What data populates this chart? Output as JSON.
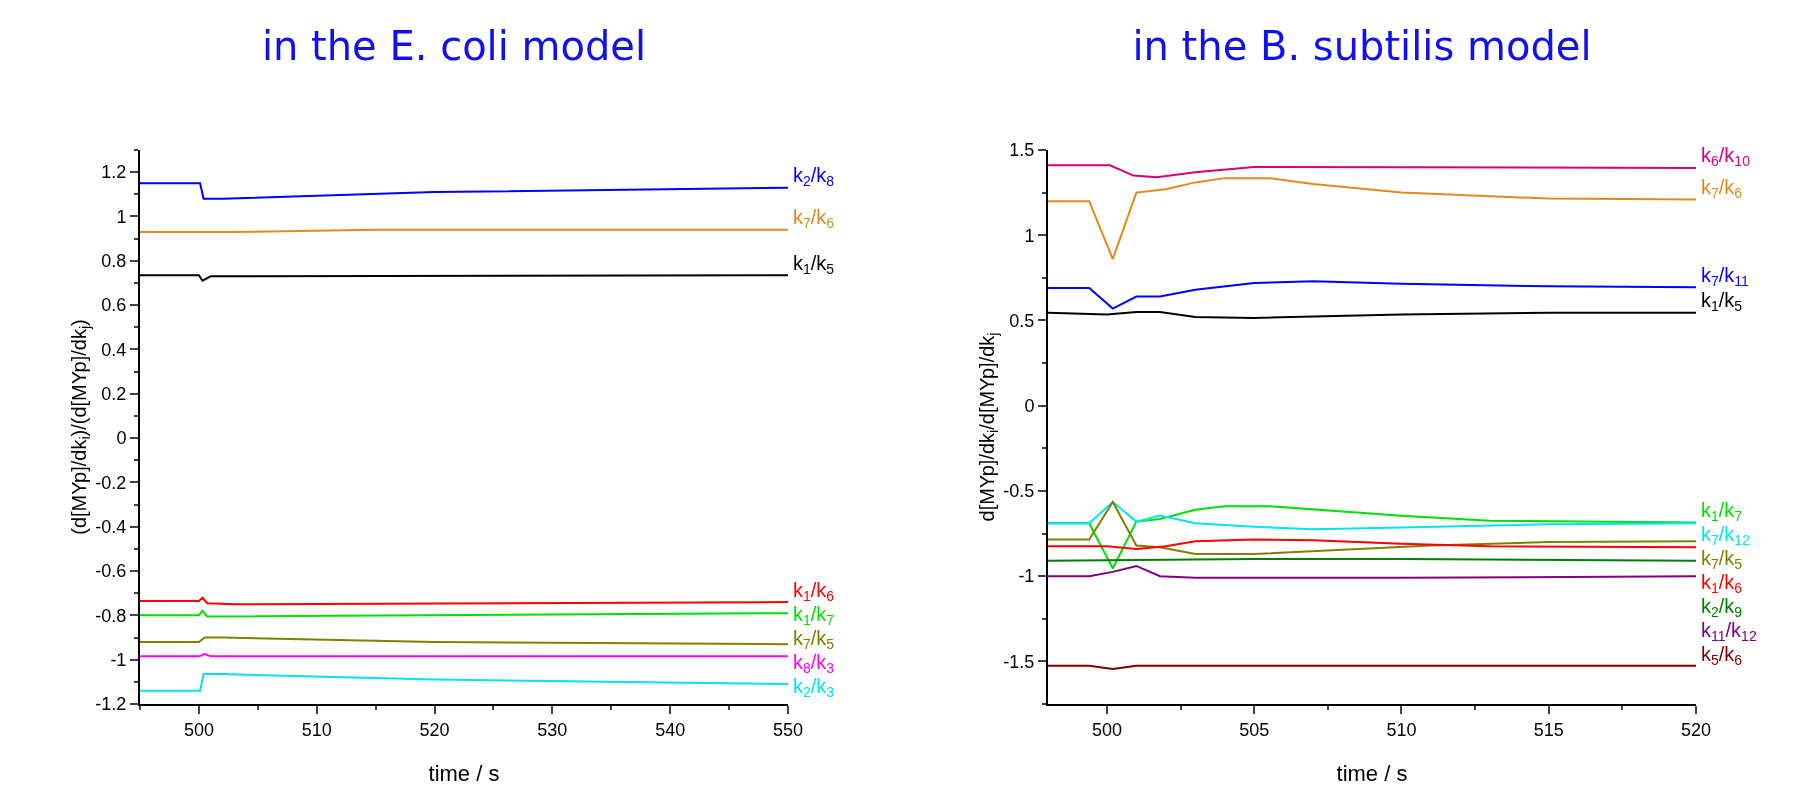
{
  "chart_data": [
    {
      "type": "line",
      "title": "in the E. coli model",
      "xlabel": "time / s",
      "ylabel": "(d[MYp]/dk$_{i}$)/(d[MYp]/dk$_{j}$)",
      "xlim": [
        495,
        550
      ],
      "xticks": [
        500,
        510,
        520,
        530,
        540,
        550
      ],
      "ylim": [
        -1.2,
        1.3
      ],
      "yticks": [
        -1.2,
        -1.0,
        -0.8,
        -0.6,
        -0.4,
        -0.2,
        0.0,
        0.2,
        0.4,
        0.6,
        0.8,
        1.0,
        1.2
      ],
      "grid": false,
      "legend": false,
      "marker": "none",
      "line_style": "solid",
      "series": [
        {
          "name": "k$_{2}$/k$_{8}$",
          "color": "#0000ff",
          "x": [
            495,
            500.1,
            500.4,
            502,
            520,
            550
          ],
          "values": [
            1.15,
            1.15,
            1.08,
            1.08,
            1.11,
            1.13
          ]
        },
        {
          "name": "k$_{7}$/k$_{6}$",
          "color": "#e08a1e",
          "x": [
            495,
            503,
            515,
            550
          ],
          "values": [
            0.93,
            0.93,
            0.94,
            0.94
          ]
        },
        {
          "name": "k$_{1}$/k$_{5}$",
          "color": "#000000",
          "x": [
            495,
            500,
            500.3,
            501,
            550
          ],
          "values": [
            0.735,
            0.735,
            0.71,
            0.73,
            0.735
          ]
        },
        {
          "name": "k$_{1}$/k$_{6}$",
          "color": "#ff0000",
          "x": [
            495,
            500,
            500.3,
            500.7,
            503,
            550
          ],
          "values": [
            -0.735,
            -0.735,
            -0.72,
            -0.745,
            -0.75,
            -0.74
          ]
        },
        {
          "name": "k$_{1}$/k$_{7}$",
          "color": "#00e000",
          "x": [
            495,
            500,
            500.3,
            500.7,
            550
          ],
          "values": [
            -0.8,
            -0.8,
            -0.78,
            -0.805,
            -0.79
          ]
        },
        {
          "name": "k$_{7}$/k$_{5}$",
          "color": "#808000",
          "x": [
            495,
            500,
            500.5,
            502,
            520,
            550
          ],
          "values": [
            -0.92,
            -0.92,
            -0.9,
            -0.9,
            -0.92,
            -0.93
          ]
        },
        {
          "name": "k$_{8}$/k$_{3}$",
          "color": "#ff00ff",
          "x": [
            495,
            500,
            500.5,
            501,
            550
          ],
          "values": [
            -0.985,
            -0.985,
            -0.975,
            -0.985,
            -0.985
          ]
        },
        {
          "name": "k$_{2}$/k$_{3}$",
          "color": "#00e5ee",
          "x": [
            495,
            500.1,
            500.4,
            502,
            520,
            550
          ],
          "values": [
            -1.14,
            -1.14,
            -1.065,
            -1.065,
            -1.09,
            -1.11
          ]
        }
      ]
    },
    {
      "type": "line",
      "title": "in the B. subtilis model",
      "xlabel": "time / s",
      "ylabel": "d[MYp]/dk$_{i}$/d[MYp]/dk$_{j}$",
      "xlim": [
        498,
        520
      ],
      "xticks": [
        500,
        505,
        510,
        515,
        520
      ],
      "ylim": [
        -1.75,
        1.5
      ],
      "yticks": [
        -1.5,
        -1.0,
        -0.5,
        0.0,
        0.5,
        1.0,
        1.5
      ],
      "grid": false,
      "legend": false,
      "marker": "none",
      "line_style": "solid",
      "series": [
        {
          "name": "k$_{6}$/k$_{10}$",
          "color": "#d6007a",
          "x": [
            498,
            500.1,
            500.9,
            501.7,
            503,
            505,
            520
          ],
          "values": [
            1.41,
            1.41,
            1.35,
            1.34,
            1.37,
            1.4,
            1.395
          ]
        },
        {
          "name": "k$_{7}$/k$_{6}$",
          "color": "#e08a1e",
          "x": [
            498,
            499.4,
            500.2,
            501,
            502,
            503,
            504,
            505.5,
            507,
            510,
            515,
            520
          ],
          "values": [
            1.2,
            1.2,
            0.86,
            1.25,
            1.27,
            1.31,
            1.335,
            1.335,
            1.3,
            1.25,
            1.215,
            1.21
          ]
        },
        {
          "name": "k$_{7}$/k$_{11}$",
          "color": "#0000ff",
          "x": [
            498,
            499.4,
            500.2,
            501,
            501.8,
            503,
            505,
            507,
            510,
            515,
            520
          ],
          "values": [
            0.69,
            0.69,
            0.57,
            0.64,
            0.64,
            0.68,
            0.72,
            0.73,
            0.715,
            0.7,
            0.695
          ]
        },
        {
          "name": "k$_{1}$/k$_{5}$",
          "color": "#000000",
          "x": [
            498,
            500,
            501,
            501.8,
            503,
            505,
            510,
            515,
            520
          ],
          "values": [
            0.545,
            0.535,
            0.55,
            0.55,
            0.52,
            0.515,
            0.535,
            0.545,
            0.545
          ]
        },
        {
          "name": "k$_{1}$/k$_{7}$",
          "color": "#00e000",
          "x": [
            498,
            499.4,
            500.2,
            501,
            501.8,
            503,
            504,
            505.5,
            508,
            510,
            513,
            520
          ],
          "values": [
            -0.69,
            -0.69,
            -0.955,
            -0.68,
            -0.665,
            -0.61,
            -0.59,
            -0.59,
            -0.62,
            -0.645,
            -0.675,
            -0.685
          ]
        },
        {
          "name": "k$_{7}$/k$_{12}$",
          "color": "#00e5ee",
          "x": [
            498,
            499.4,
            500.2,
            501,
            501.8,
            503,
            505,
            507,
            510,
            515,
            520
          ],
          "values": [
            -0.69,
            -0.69,
            -0.565,
            -0.68,
            -0.645,
            -0.69,
            -0.71,
            -0.725,
            -0.715,
            -0.695,
            -0.69
          ]
        },
        {
          "name": "k$_{7}$/k$_{5}$",
          "color": "#808000",
          "x": [
            498,
            499.4,
            500.2,
            501,
            501.8,
            503,
            505,
            508,
            511,
            515,
            520
          ],
          "values": [
            -0.785,
            -0.785,
            -0.565,
            -0.82,
            -0.83,
            -0.87,
            -0.87,
            -0.845,
            -0.82,
            -0.8,
            -0.795
          ]
        },
        {
          "name": "k$_{1}$/k$_{6}$",
          "color": "#ff0000",
          "x": [
            498,
            500,
            501,
            502,
            503,
            505,
            507,
            510,
            513,
            520
          ],
          "values": [
            -0.825,
            -0.825,
            -0.84,
            -0.825,
            -0.795,
            -0.785,
            -0.79,
            -0.81,
            -0.825,
            -0.83
          ]
        },
        {
          "name": "k$_{2}$/k$_{9}$",
          "color": "#008000",
          "x": [
            498,
            505,
            510,
            520
          ],
          "values": [
            -0.91,
            -0.9,
            -0.9,
            -0.91
          ]
        },
        {
          "name": "k$_{11}$/k$_{12}$",
          "color": "#800080",
          "x": [
            498,
            499.4,
            500.2,
            501,
            501.8,
            503,
            510,
            520
          ],
          "values": [
            -1.0,
            -1.0,
            -0.975,
            -0.94,
            -1.0,
            -1.01,
            -1.01,
            -1.0
          ]
        },
        {
          "name": "k$_{5}$/k$_{6}$",
          "color": "#800000",
          "x": [
            498,
            499.4,
            500.2,
            501,
            520
          ],
          "values": [
            -1.525,
            -1.525,
            -1.545,
            -1.525,
            -1.525
          ]
        }
      ]
    }
  ]
}
